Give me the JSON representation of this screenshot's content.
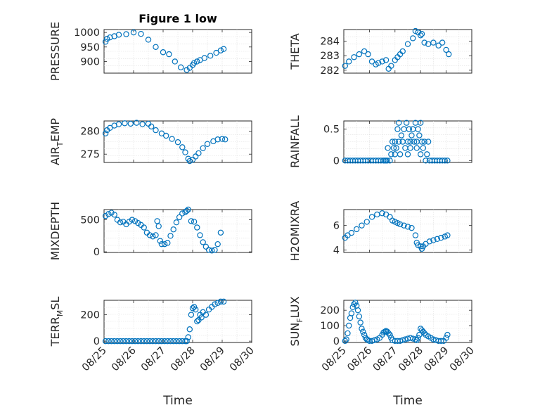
{
  "figure_title": "Figure 1 low",
  "colors": {
    "marker": "#0072BD",
    "axis": "#262626",
    "grid": "#dfdfdf"
  },
  "chart_data": [
    {
      "id": "pressure",
      "type": "scatter",
      "title": "Figure 1 low",
      "ylabel": "PRESSURE",
      "xlabel": "",
      "xlim": [
        "08/25",
        "08/30"
      ],
      "ylim": [
        860,
        1010
      ],
      "yticks": [
        900,
        950,
        1000
      ],
      "xticks": [
        "08/25",
        "08/26",
        "08/27",
        "08/28",
        "08/29",
        "08/30"
      ],
      "x_tick_labels_shown": false,
      "grid": true,
      "series": [
        {
          "t": [
            0.05,
            0.1,
            0.2,
            0.35,
            0.5,
            0.75,
            1.0,
            1.25,
            1.5,
            1.75,
            2.0,
            2.2,
            2.4,
            2.6,
            2.8,
            2.9,
            3.0,
            3.05,
            3.15,
            3.25,
            3.4,
            3.6,
            3.8,
            3.95,
            4.05
          ],
          "y": [
            968,
            978,
            983,
            987,
            992,
            994,
            1000,
            995,
            975,
            950,
            932,
            925,
            900,
            880,
            871,
            878,
            888,
            895,
            900,
            905,
            912,
            920,
            930,
            938,
            943
          ]
        }
      ]
    },
    {
      "id": "theta",
      "type": "scatter",
      "ylabel": "THETA",
      "xlabel": "",
      "xlim": [
        "08/25",
        "08/30"
      ],
      "ylim": [
        281.8,
        284.8
      ],
      "yticks": [
        282,
        283,
        284
      ],
      "xticks": [
        "08/25",
        "08/26",
        "08/27",
        "08/28",
        "08/29",
        "08/30"
      ],
      "x_tick_labels_shown": false,
      "grid": true,
      "series": [
        {
          "t": [
            0.05,
            0.2,
            0.4,
            0.6,
            0.8,
            0.95,
            1.1,
            1.25,
            1.35,
            1.5,
            1.65,
            1.75,
            1.85,
            2.0,
            2.1,
            2.2,
            2.3,
            2.5,
            2.7,
            2.8,
            2.9,
            3.0,
            3.05,
            3.15,
            3.3,
            3.5,
            3.7,
            3.85,
            4.0,
            4.1
          ],
          "y": [
            282.3,
            282.6,
            282.9,
            283.1,
            283.3,
            283.1,
            282.6,
            282.4,
            282.5,
            282.6,
            282.7,
            282.1,
            282.3,
            282.7,
            282.9,
            283.1,
            283.3,
            283.8,
            284.2,
            284.7,
            284.6,
            284.4,
            284.5,
            283.9,
            283.8,
            283.9,
            283.7,
            283.9,
            283.4,
            283.1
          ]
        }
      ]
    },
    {
      "id": "airtemp",
      "type": "scatter",
      "ylabel": "AIR_TEMP",
      "ylabel_main": "AIR",
      "ylabel_sub": "T",
      "ylabel_tail": "EMP",
      "xlabel": "",
      "xlim": [
        "08/25",
        "08/30"
      ],
      "ylim": [
        273.2,
        282.2
      ],
      "yticks": [
        275,
        280
      ],
      "xticks": [
        "08/25",
        "08/26",
        "08/27",
        "08/28",
        "08/29",
        "08/30"
      ],
      "x_tick_labels_shown": false,
      "grid": true,
      "series": [
        {
          "t": [
            0.05,
            0.1,
            0.2,
            0.35,
            0.5,
            0.7,
            0.9,
            1.1,
            1.3,
            1.5,
            1.6,
            1.75,
            1.95,
            2.1,
            2.3,
            2.5,
            2.65,
            2.75,
            2.85,
            2.9,
            3.0,
            3.1,
            3.2,
            3.35,
            3.5,
            3.7,
            3.85,
            4.0,
            4.1
          ],
          "y": [
            279.5,
            280.2,
            280.7,
            281.2,
            281.5,
            281.7,
            281.6,
            281.8,
            281.5,
            281.6,
            281.0,
            280.2,
            279.5,
            279.0,
            278.3,
            277.6,
            276.5,
            275.4,
            274.0,
            273.5,
            273.8,
            274.5,
            275.2,
            276.3,
            277.2,
            277.8,
            278.2,
            278.3,
            278.2
          ]
        }
      ]
    },
    {
      "id": "rainfall",
      "type": "scatter",
      "ylabel": "RAINFALL",
      "xlabel": "",
      "xlim": [
        "08/25",
        "08/30"
      ],
      "ylim": [
        -0.03,
        0.63
      ],
      "yticks": [
        0,
        0.5
      ],
      "xticks": [
        "08/25",
        "08/26",
        "08/27",
        "08/28",
        "08/29",
        "08/30"
      ],
      "x_tick_labels_shown": false,
      "grid": true,
      "series": [
        {
          "t": [
            0.05,
            0.15,
            0.25,
            0.35,
            0.45,
            0.55,
            0.65,
            0.75,
            0.85,
            0.95,
            1.05,
            1.15,
            1.25,
            1.35,
            1.45,
            1.55,
            1.6,
            1.65,
            1.7,
            1.72,
            1.8,
            1.85,
            1.9,
            1.95,
            2.0,
            2.0,
            2.05,
            2.1,
            2.15,
            2.15,
            2.2,
            2.25,
            2.3,
            2.35,
            2.4,
            2.45,
            2.5,
            2.5,
            2.55,
            2.6,
            2.6,
            2.65,
            2.7,
            2.75,
            2.8,
            2.85,
            2.85,
            2.9,
            2.95,
            3.0,
            3.0,
            3.05,
            3.1,
            3.15,
            3.2,
            3.25,
            3.3,
            3.35,
            3.45,
            3.55,
            3.65,
            3.75,
            3.85,
            3.95,
            4.05
          ],
          "y": [
            0,
            0,
            0,
            0,
            0,
            0,
            0,
            0,
            0,
            0,
            0,
            0,
            0,
            0,
            0,
            0,
            0,
            0,
            0,
            0.2,
            0,
            0.1,
            0.3,
            0.2,
            0.3,
            0.1,
            0.2,
            0.5,
            0.6,
            0.3,
            0.1,
            0.4,
            0.3,
            0.5,
            0.2,
            0.6,
            0.3,
            0.1,
            0.5,
            0.3,
            0.2,
            0.4,
            0.5,
            0.3,
            0.6,
            0.3,
            0.2,
            0.5,
            0.4,
            0.1,
            0.6,
            0.3,
            0.2,
            0.3,
            0.0,
            0.1,
            0.3,
            0,
            0,
            0,
            0,
            0,
            0,
            0,
            0
          ]
        }
      ]
    },
    {
      "id": "mixdepth",
      "type": "scatter",
      "ylabel": "MIXDEPTH",
      "xlabel": "",
      "xlim": [
        "08/25",
        "08/30"
      ],
      "ylim": [
        -10,
        660
      ],
      "yticks": [
        0,
        500
      ],
      "xticks": [
        "08/25",
        "08/26",
        "08/27",
        "08/28",
        "08/29",
        "08/30"
      ],
      "x_tick_labels_shown": false,
      "grid": true,
      "series": [
        {
          "t": [
            0.05,
            0.15,
            0.25,
            0.35,
            0.45,
            0.55,
            0.65,
            0.75,
            0.85,
            0.95,
            1.05,
            1.15,
            1.25,
            1.35,
            1.45,
            1.55,
            1.65,
            1.75,
            1.8,
            1.85,
            1.9,
            1.95,
            2.05,
            2.15,
            2.25,
            2.35,
            2.45,
            2.55,
            2.65,
            2.75,
            2.8,
            2.85,
            2.95,
            3.05,
            3.15,
            3.25,
            3.35,
            3.45,
            3.55,
            3.65,
            3.75,
            3.85,
            3.95
          ],
          "y": [
            560,
            590,
            610,
            580,
            500,
            460,
            470,
            430,
            470,
            500,
            480,
            450,
            420,
            380,
            300,
            260,
            240,
            260,
            480,
            400,
            170,
            120,
            120,
            140,
            250,
            350,
            460,
            540,
            600,
            620,
            640,
            660,
            480,
            470,
            380,
            260,
            150,
            80,
            30,
            20,
            30,
            120,
            300
          ]
        }
      ]
    },
    {
      "id": "h2omixra",
      "type": "scatter",
      "ylabel": "H2OMIXRA",
      "xlabel": "",
      "xlim": [
        "08/25",
        "08/30"
      ],
      "ylim": [
        3.8,
        7.3
      ],
      "yticks": [
        4,
        6
      ],
      "xticks": [
        "08/25",
        "08/26",
        "08/27",
        "08/28",
        "08/29",
        "08/30"
      ],
      "x_tick_labels_shown": false,
      "grid": true,
      "series": [
        {
          "t": [
            0.05,
            0.15,
            0.3,
            0.5,
            0.7,
            0.9,
            1.1,
            1.3,
            1.5,
            1.65,
            1.8,
            1.9,
            2.0,
            2.1,
            2.2,
            2.35,
            2.5,
            2.65,
            2.8,
            2.85,
            2.9,
            3.0,
            3.05,
            3.1,
            3.2,
            3.35,
            3.5,
            3.65,
            3.8,
            3.95,
            4.05
          ],
          "y": [
            5.0,
            5.2,
            5.4,
            5.7,
            6.0,
            6.3,
            6.7,
            6.9,
            7.0,
            6.9,
            6.7,
            6.4,
            6.3,
            6.2,
            6.1,
            6.0,
            5.9,
            5.8,
            5.2,
            4.6,
            4.4,
            4.3,
            4.1,
            4.3,
            4.5,
            4.7,
            4.8,
            4.9,
            5.0,
            5.1,
            5.2
          ]
        }
      ]
    },
    {
      "id": "terrmsl",
      "type": "scatter",
      "ylabel": "TERR_MSL",
      "ylabel_main": "TERR",
      "ylabel_sub": "M",
      "ylabel_tail": "SL",
      "xlabel": "Time",
      "xlim": [
        "08/25",
        "08/30"
      ],
      "ylim": [
        -10,
        310
      ],
      "yticks": [
        0,
        200
      ],
      "xticks": [
        "08/25",
        "08/26",
        "08/27",
        "08/28",
        "08/29",
        "08/30"
      ],
      "x_tick_labels_shown": true,
      "grid": true,
      "series": [
        {
          "t": [
            0.05,
            0.15,
            0.25,
            0.35,
            0.45,
            0.55,
            0.65,
            0.75,
            0.85,
            0.95,
            1.05,
            1.15,
            1.25,
            1.35,
            1.45,
            1.55,
            1.65,
            1.75,
            1.85,
            1.95,
            2.05,
            2.15,
            2.25,
            2.35,
            2.45,
            2.55,
            2.65,
            2.75,
            2.8,
            2.85,
            2.9,
            2.95,
            3.0,
            3.05,
            3.1,
            3.15,
            3.2,
            3.25,
            3.3,
            3.35,
            3.45,
            3.55,
            3.65,
            3.75,
            3.85,
            3.95,
            4.05
          ],
          "y": [
            0,
            0,
            0,
            0,
            0,
            0,
            0,
            0,
            0,
            0,
            0,
            0,
            0,
            0,
            0,
            0,
            0,
            0,
            0,
            0,
            0,
            0,
            0,
            0,
            0,
            0,
            0,
            0,
            0,
            30,
            90,
            200,
            250,
            260,
            240,
            150,
            160,
            200,
            180,
            220,
            200,
            240,
            260,
            280,
            290,
            300,
            300
          ]
        }
      ]
    },
    {
      "id": "sunflux",
      "type": "scatter",
      "ylabel": "SUN_FLUX",
      "ylabel_main": "SUN",
      "ylabel_sub": "F",
      "ylabel_tail": "LUX",
      "xlabel": "Time",
      "xlim": [
        "08/25",
        "08/30"
      ],
      "ylim": [
        -10,
        265
      ],
      "yticks": [
        0,
        100,
        200
      ],
      "xticks": [
        "08/25",
        "08/26",
        "08/27",
        "08/28",
        "08/29",
        "08/30"
      ],
      "x_tick_labels_shown": true,
      "grid": true,
      "series": [
        {
          "t": [
            0.05,
            0.1,
            0.15,
            0.2,
            0.25,
            0.3,
            0.35,
            0.4,
            0.45,
            0.5,
            0.55,
            0.6,
            0.65,
            0.7,
            0.75,
            0.8,
            0.85,
            0.9,
            0.95,
            1.0,
            1.1,
            1.2,
            1.3,
            1.4,
            1.5,
            1.55,
            1.6,
            1.65,
            1.7,
            1.75,
            1.8,
            1.85,
            1.9,
            2.0,
            2.1,
            2.2,
            2.3,
            2.4,
            2.5,
            2.6,
            2.7,
            2.8,
            2.85,
            2.9,
            2.95,
            3.0,
            3.05,
            3.1,
            3.15,
            3.2,
            3.3,
            3.4,
            3.5,
            3.6,
            3.7,
            3.8,
            3.9,
            4.0,
            4.05
          ],
          "y": [
            0,
            10,
            50,
            100,
            150,
            180,
            220,
            240,
            250,
            230,
            200,
            160,
            120,
            80,
            60,
            40,
            20,
            10,
            5,
            0,
            0,
            5,
            10,
            20,
            40,
            55,
            60,
            65,
            60,
            50,
            40,
            20,
            5,
            0,
            0,
            0,
            5,
            10,
            15,
            20,
            15,
            10,
            5,
            20,
            40,
            80,
            70,
            60,
            50,
            40,
            30,
            20,
            10,
            5,
            0,
            0,
            0,
            20,
            40
          ]
        }
      ]
    }
  ]
}
